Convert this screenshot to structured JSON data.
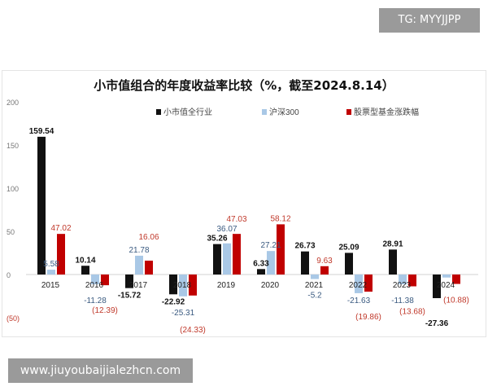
{
  "watermarks": {
    "top": "TG: MYYJJPP",
    "bottom": "www.jiuyoubaijialezhcn.com"
  },
  "chart_data": {
    "type": "bar",
    "title": "小市值组合的年度收益率比较（%，截至2024.8.14）",
    "categories": [
      "2015",
      "2016",
      "2017",
      "2018",
      "2019",
      "2020",
      "2021",
      "2022",
      "2023",
      "2024"
    ],
    "ylim": [
      -50,
      200
    ],
    "yticks": [
      "(50)",
      "0",
      "50",
      "100",
      "150",
      "200"
    ],
    "legend_position": "top",
    "grid": false,
    "series": [
      {
        "name": "小市值全行业",
        "color": "#111111",
        "label_color": "#111111",
        "values": [
          159.54,
          10.14,
          -15.72,
          -22.92,
          35.26,
          6.33,
          26.73,
          25.09,
          28.91,
          -27.36
        ],
        "labels": [
          "159.54",
          "10.14",
          "-15.72",
          "-22.92",
          "35.26",
          "6.33",
          "26.73",
          "25.09",
          "28.91",
          "-27.36"
        ]
      },
      {
        "name": "沪深300",
        "color": "#a9c8e6",
        "label_color": "#3a5a80",
        "values": [
          5.58,
          -11.28,
          21.78,
          -25.31,
          36.07,
          27.21,
          -5.2,
          -21.63,
          -11.38,
          -3.5
        ],
        "labels": [
          "5.58",
          "-11.28",
          "21.78",
          "-25.31",
          "36.07",
          "27.21",
          "-5.2",
          "-21.63",
          "-11.38",
          null
        ]
      },
      {
        "name": "股票型基金涨跌幅",
        "color": "#c00000",
        "label_color": "#c0392b",
        "values": [
          47.02,
          -12.39,
          16.06,
          -24.33,
          47.03,
          58.12,
          9.63,
          -19.86,
          -13.68,
          -10.88
        ],
        "labels": [
          "47.02",
          "(12.39)",
          "16.06",
          "(24.33)",
          "47.03",
          "58.12",
          "9.63",
          "(19.86)",
          "(13.68)",
          "(10.88)"
        ]
      }
    ]
  }
}
